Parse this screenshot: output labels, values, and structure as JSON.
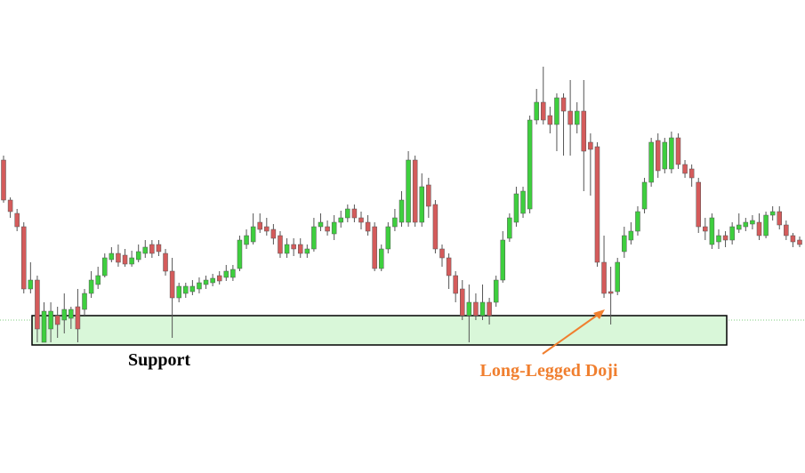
{
  "chart_data": {
    "type": "candlestick",
    "annotations": [
      "Support",
      "Long-Legged Doji"
    ],
    "up_color": "#3ecf3e",
    "down_color": "#d45b5b",
    "ylim": [
      -132,
      400
    ],
    "open": [
      220,
      175,
      160,
      145,
      75,
      85,
      15,
      30,
      45,
      40,
      42,
      55,
      52,
      70,
      80,
      90,
      108,
      115,
      113,
      103,
      108,
      115,
      125,
      125,
      115,
      95,
      65,
      70,
      72,
      75,
      80,
      82,
      90,
      88,
      88,
      98,
      125,
      128,
      150,
      145,
      142,
      135,
      115,
      125,
      125,
      115,
      120,
      145,
      145,
      137,
      150,
      155,
      165,
      155,
      150,
      145,
      98,
      120,
      145,
      150,
      150,
      220,
      150,
      192,
      170,
      120,
      110,
      90,
      75,
      45,
      60,
      45,
      60,
      60,
      85,
      132,
      150,
      160,
      165,
      265,
      285,
      270,
      260,
      290,
      275,
      260,
      275,
      240,
      235,
      105,
      72,
      72,
      117,
      130,
      140,
      165,
      195,
      242,
      210,
      210,
      245,
      215,
      210,
      195,
      145,
      125,
      128,
      135,
      130,
      142,
      145,
      148,
      150,
      135,
      158,
      162,
      147,
      135,
      130
    ],
    "high": [
      225,
      178,
      165,
      150,
      105,
      90,
      60,
      60,
      55,
      70,
      55,
      75,
      75,
      95,
      100,
      115,
      122,
      125,
      120,
      118,
      125,
      130,
      130,
      130,
      120,
      110,
      82,
      82,
      85,
      88,
      90,
      92,
      95,
      102,
      102,
      135,
      142,
      160,
      160,
      155,
      148,
      140,
      132,
      132,
      132,
      125,
      155,
      160,
      152,
      158,
      163,
      170,
      170,
      162,
      158,
      150,
      125,
      150,
      165,
      185,
      230,
      225,
      205,
      200,
      175,
      125,
      115,
      95,
      85,
      80,
      70,
      80,
      65,
      90,
      140,
      160,
      190,
      190,
      270,
      300,
      325,
      280,
      295,
      295,
      310,
      285,
      310,
      250,
      240,
      135,
      100,
      110,
      145,
      150,
      168,
      200,
      245,
      250,
      245,
      252,
      250,
      220,
      215,
      200,
      155,
      160,
      142,
      140,
      150,
      160,
      155,
      158,
      160,
      162,
      168,
      168,
      152,
      138,
      134
    ],
    "low": [
      172,
      155,
      140,
      70,
      70,
      15,
      15,
      15,
      20,
      25,
      30,
      15,
      45,
      65,
      75,
      88,
      105,
      100,
      100,
      100,
      105,
      110,
      110,
      112,
      90,
      20,
      60,
      65,
      68,
      70,
      75,
      78,
      80,
      84,
      84,
      95,
      120,
      125,
      138,
      135,
      125,
      110,
      110,
      112,
      110,
      110,
      117,
      140,
      135,
      130,
      144,
      150,
      150,
      142,
      135,
      95,
      95,
      115,
      140,
      145,
      145,
      145,
      145,
      155,
      115,
      100,
      75,
      60,
      40,
      15,
      40,
      40,
      35,
      55,
      82,
      128,
      145,
      155,
      160,
      260,
      260,
      250,
      230,
      225,
      225,
      250,
      185,
      180,
      100,
      65,
      35,
      68,
      110,
      125,
      135,
      160,
      190,
      200,
      205,
      205,
      210,
      200,
      190,
      138,
      130,
      120,
      120,
      122,
      125,
      138,
      140,
      142,
      130,
      132,
      152,
      142,
      130,
      122,
      122
    ],
    "close": [
      175,
      162,
      145,
      75,
      85,
      30,
      50,
      50,
      35,
      52,
      52,
      30,
      70,
      85,
      90,
      110,
      115,
      105,
      103,
      110,
      117,
      122,
      115,
      117,
      95,
      65,
      78,
      78,
      78,
      82,
      85,
      87,
      84,
      95,
      97,
      130,
      135,
      145,
      142,
      140,
      132,
      115,
      125,
      120,
      115,
      120,
      145,
      150,
      140,
      150,
      155,
      165,
      155,
      150,
      140,
      98,
      120,
      145,
      155,
      175,
      220,
      150,
      190,
      168,
      120,
      110,
      90,
      70,
      45,
      60,
      45,
      60,
      45,
      85,
      130,
      155,
      182,
      185,
      265,
      285,
      265,
      260,
      290,
      275,
      260,
      275,
      230,
      232,
      105,
      70,
      70,
      105,
      135,
      140,
      162,
      195,
      240,
      208,
      240,
      245,
      215,
      205,
      200,
      145,
      140,
      155,
      135,
      130,
      145,
      147,
      150,
      152,
      135,
      158,
      162,
      147,
      135,
      128,
      125
    ]
  }
}
